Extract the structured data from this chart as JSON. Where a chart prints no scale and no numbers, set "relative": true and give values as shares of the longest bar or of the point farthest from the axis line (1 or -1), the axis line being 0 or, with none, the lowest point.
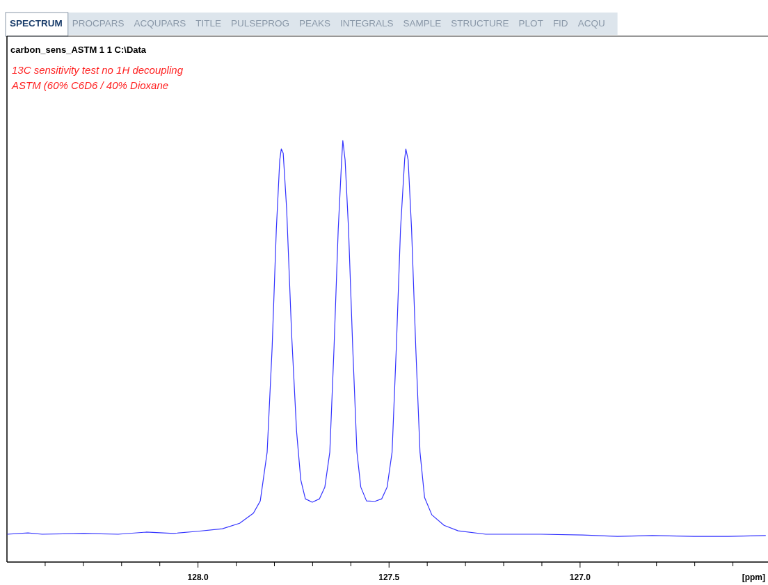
{
  "chart_data": {
    "type": "line",
    "title": "carbon_sens_ASTM  1  1  C:\\Data",
    "subtitle": "13C sensitivity test no 1H decoupling\nASTM (60% C6D6 / 40% Dioxane",
    "xlabel": "[ppm]",
    "annotations": [
      "SPECTRUM",
      "PROCPARS",
      "ACQUPARS",
      "TITLE",
      "PULSEPROG",
      "PEAKS",
      "INTEGRALS",
      "SAMPLE",
      "STRUCTURE",
      "PLOT",
      "FID",
      "ACQU"
    ],
    "relative": true,
    "grid": false,
    "marker": "none",
    "line_style": "solid",
    "xlim": [
      128.5,
      126.51
    ],
    "xticks": [
      {
        "value": 128.4,
        "label": null
      },
      {
        "value": 128.3,
        "label": null
      },
      {
        "value": 128.2,
        "label": null
      },
      {
        "value": 128.1,
        "label": null
      },
      {
        "value": 128,
        "label": "128.0"
      },
      {
        "value": 127.9,
        "label": null
      },
      {
        "value": 127.8,
        "label": null
      },
      {
        "value": 127.7,
        "label": null
      },
      {
        "value": 127.6,
        "label": null
      },
      {
        "value": 127.5,
        "label": "127.5"
      },
      {
        "value": 127.4,
        "label": null
      },
      {
        "value": 127.3,
        "label": null
      },
      {
        "value": 127.2,
        "label": null
      },
      {
        "value": 127.1,
        "label": null
      },
      {
        "value": 127,
        "label": "127.0"
      },
      {
        "value": 126.9,
        "label": null
      },
      {
        "value": 126.8,
        "label": null
      },
      {
        "value": 126.7,
        "label": null
      },
      {
        "value": 126.6,
        "label": null
      }
    ],
    "series": [
      {
        "color": "#3333ff",
        "x": [
          128.499,
          128.445,
          128.408,
          128.299,
          128.209,
          128.136,
          128.064,
          128.0,
          127.936,
          127.891,
          127.855,
          127.837,
          127.819,
          127.806,
          127.795,
          127.786,
          127.782,
          127.777,
          127.768,
          127.755,
          127.742,
          127.731,
          127.719,
          127.701,
          127.682,
          127.668,
          127.655,
          127.644,
          127.633,
          127.624,
          127.621,
          127.615,
          127.606,
          127.595,
          127.584,
          127.574,
          127.559,
          127.537,
          127.519,
          127.505,
          127.492,
          127.481,
          127.47,
          127.459,
          127.456,
          127.45,
          127.441,
          127.43,
          127.419,
          127.407,
          127.388,
          127.356,
          127.319,
          127.247,
          127.102,
          126.993,
          126.902,
          126.811,
          126.702,
          126.612,
          126.514
        ],
        "values": [
          0.066,
          0.069,
          0.066,
          0.068,
          0.066,
          0.071,
          0.068,
          0.073,
          0.079,
          0.092,
          0.116,
          0.145,
          0.261,
          0.508,
          0.789,
          0.954,
          0.98,
          0.97,
          0.838,
          0.541,
          0.31,
          0.195,
          0.15,
          0.142,
          0.15,
          0.178,
          0.261,
          0.508,
          0.789,
          0.954,
          1.0,
          0.954,
          0.789,
          0.508,
          0.261,
          0.178,
          0.145,
          0.144,
          0.15,
          0.178,
          0.261,
          0.508,
          0.789,
          0.957,
          0.98,
          0.954,
          0.789,
          0.508,
          0.261,
          0.153,
          0.112,
          0.087,
          0.074,
          0.066,
          0.066,
          0.064,
          0.061,
          0.063,
          0.061,
          0.061,
          0.063
        ]
      }
    ]
  }
}
